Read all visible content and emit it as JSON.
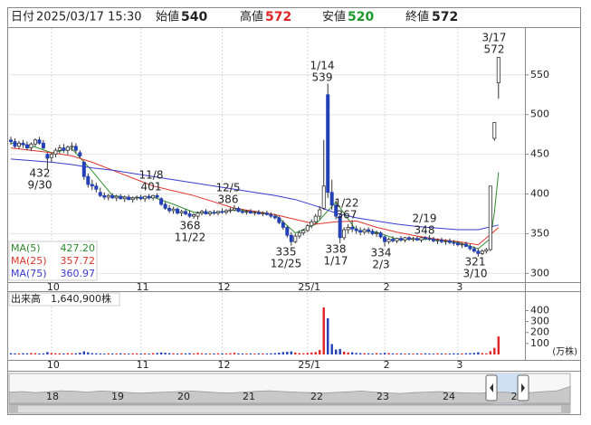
{
  "header": {
    "date_label": "日付",
    "date": "2025/03/17 15:30",
    "open_label": "始値",
    "open": 540,
    "high_label": "高値",
    "high": 572,
    "low_label": "安値",
    "low": 520,
    "close_label": "終値",
    "close": 572
  },
  "chart_data": {
    "type": "candlestick",
    "open": [
      468,
      466,
      460,
      464,
      462,
      458,
      463,
      468,
      464,
      450,
      446,
      450,
      455,
      458,
      455,
      459,
      460,
      452,
      440,
      422,
      412,
      410,
      402,
      398,
      396,
      398,
      395,
      397,
      394,
      396,
      393,
      395,
      396,
      394,
      397,
      395,
      398,
      394,
      387,
      382,
      379,
      381,
      376,
      378,
      375,
      372,
      372,
      376,
      378,
      375,
      377,
      376,
      378,
      377,
      379,
      380,
      382,
      378,
      377,
      378,
      376,
      377,
      375,
      376,
      374,
      372,
      370,
      364,
      358,
      348,
      340,
      347,
      351,
      354,
      360,
      365,
      372,
      382,
      525,
      402,
      386,
      372,
      345,
      355,
      358,
      356,
      354,
      352,
      355,
      353,
      350,
      351,
      346,
      340,
      343,
      341,
      344,
      342,
      345,
      343,
      344,
      342,
      345,
      344,
      343,
      341,
      342,
      340,
      341,
      339,
      338,
      336,
      337,
      334,
      331,
      328,
      325,
      328,
      330,
      470,
      540
    ],
    "high": [
      472,
      470,
      467,
      468,
      466,
      465,
      470,
      472,
      468,
      452,
      452,
      458,
      462,
      463,
      461,
      465,
      464,
      455,
      442,
      426,
      418,
      414,
      408,
      402,
      400,
      401,
      399,
      400,
      398,
      399,
      397,
      398,
      399,
      398,
      400,
      399,
      401,
      396,
      390,
      386,
      384,
      383,
      380,
      381,
      379,
      376,
      378,
      380,
      381,
      379,
      380,
      379,
      382,
      381,
      383,
      386,
      384,
      381,
      380,
      381,
      379,
      380,
      378,
      379,
      377,
      375,
      372,
      367,
      360,
      352,
      350,
      354,
      356,
      362,
      368,
      375,
      385,
      468,
      539,
      418,
      392,
      375,
      358,
      362,
      367,
      360,
      358,
      357,
      358,
      356,
      354,
      353,
      348,
      345,
      347,
      345,
      347,
      346,
      347,
      346,
      347,
      346,
      347,
      348,
      346,
      344,
      345,
      343,
      344,
      342,
      341,
      339,
      340,
      337,
      334,
      331,
      330,
      332,
      410,
      490,
      572
    ],
    "low": [
      462,
      458,
      457,
      458,
      455,
      454,
      460,
      462,
      456,
      432,
      440,
      446,
      451,
      452,
      450,
      454,
      452,
      445,
      418,
      408,
      405,
      402,
      396,
      393,
      392,
      394,
      391,
      393,
      390,
      392,
      389,
      392,
      392,
      390,
      393,
      392,
      394,
      385,
      380,
      376,
      375,
      374,
      372,
      373,
      370,
      369,
      368,
      373,
      374,
      372,
      374,
      373,
      375,
      374,
      376,
      378,
      377,
      375,
      374,
      375,
      373,
      374,
      372,
      373,
      370,
      368,
      362,
      355,
      345,
      335,
      338,
      344,
      348,
      352,
      357,
      362,
      368,
      380,
      395,
      380,
      368,
      338,
      342,
      350,
      352,
      350,
      348,
      349,
      350,
      348,
      346,
      344,
      334,
      337,
      339,
      338,
      340,
      339,
      341,
      340,
      341,
      339,
      342,
      341,
      339,
      337,
      338,
      336,
      337,
      335,
      334,
      332,
      333,
      329,
      326,
      321,
      323,
      325,
      328,
      467,
      520
    ],
    "close": [
      466,
      460,
      464,
      462,
      458,
      463,
      468,
      464,
      458,
      445,
      450,
      455,
      458,
      455,
      459,
      460,
      455,
      448,
      422,
      412,
      410,
      406,
      398,
      396,
      398,
      395,
      397,
      394,
      396,
      393,
      395,
      396,
      394,
      397,
      395,
      398,
      396,
      387,
      382,
      379,
      381,
      376,
      378,
      375,
      372,
      374,
      376,
      378,
      375,
      377,
      376,
      378,
      377,
      379,
      380,
      382,
      378,
      377,
      378,
      376,
      377,
      375,
      376,
      374,
      372,
      370,
      364,
      358,
      348,
      340,
      347,
      351,
      354,
      360,
      365,
      372,
      380,
      410,
      402,
      386,
      372,
      345,
      355,
      358,
      356,
      354,
      352,
      355,
      353,
      350,
      351,
      346,
      340,
      343,
      341,
      344,
      342,
      345,
      343,
      344,
      342,
      345,
      344,
      343,
      341,
      342,
      340,
      341,
      339,
      338,
      336,
      337,
      334,
      331,
      328,
      325,
      328,
      330,
      410,
      490,
      572
    ],
    "up_color": "#ffffff",
    "down_color": "#2340b8",
    "ylim": [
      289,
      609
    ],
    "yticks": [
      300,
      350,
      400,
      450,
      500,
      550
    ],
    "xticks": [
      {
        "value": 10,
        "label": "10"
      },
      {
        "value": 32,
        "label": "11"
      },
      {
        "value": 52,
        "label": "12"
      },
      {
        "value": 73,
        "label": "25/1"
      },
      {
        "value": 92,
        "label": "2"
      },
      {
        "value": 110,
        "label": "3"
      }
    ],
    "grid": true,
    "moving_averages": [
      {
        "name": "MA(5)",
        "legend_value": "427.20",
        "color": "#2e8b2e",
        "x": [
          0,
          5,
          10,
          15,
          20,
          25,
          30,
          35,
          40,
          45,
          50,
          55,
          60,
          65,
          70,
          75,
          80,
          85,
          90,
          95,
          100,
          105,
          110,
          115,
          118,
          119,
          120
        ],
        "values": [
          464,
          461,
          452,
          457,
          429,
          398,
          395,
          396,
          387,
          377,
          376,
          380,
          378,
          374,
          351,
          362,
          390,
          354,
          352,
          343,
          343,
          343,
          339,
          331,
          344,
          377,
          427.2
        ]
      },
      {
        "name": "MA(25)",
        "legend_value": "357.72",
        "color": "#e0342c",
        "x": [
          0,
          5,
          10,
          15,
          20,
          25,
          30,
          35,
          40,
          45,
          50,
          55,
          60,
          65,
          70,
          75,
          80,
          85,
          90,
          95,
          100,
          105,
          110,
          115,
          120
        ],
        "values": [
          458,
          455,
          452,
          448,
          440,
          430,
          420,
          410,
          404,
          398,
          390,
          382,
          378,
          374,
          368,
          362,
          365,
          366,
          358,
          352,
          347,
          343,
          340,
          336,
          357.72
        ]
      },
      {
        "name": "MA(75)",
        "legend_value": "360.97",
        "color": "#3a3ad0",
        "x": [
          0,
          5,
          10,
          15,
          20,
          25,
          30,
          35,
          40,
          45,
          50,
          55,
          60,
          65,
          70,
          75,
          80,
          85,
          90,
          95,
          100,
          105,
          110,
          115,
          120
        ],
        "values": [
          444,
          442,
          440,
          437,
          433,
          430,
          426,
          422,
          418,
          414,
          410,
          406,
          402,
          398,
          393,
          385,
          376,
          370,
          366,
          362,
          359,
          357,
          355,
          355,
          360.97
        ]
      }
    ],
    "annotations": [
      {
        "date": "9/30",
        "value": 432
      },
      {
        "date": "11/8",
        "value": 401
      },
      {
        "date": "11/22",
        "value": 368
      },
      {
        "date": "12/5",
        "value": 386
      },
      {
        "date": "12/25",
        "value": 335
      },
      {
        "date": "1/14",
        "value": 539
      },
      {
        "date": "1/22",
        "value": 367
      },
      {
        "date": "1/17",
        "value": 338
      },
      {
        "date": "2/3",
        "value": 334
      },
      {
        "date": "2/19",
        "value": 348
      },
      {
        "date": "3/10",
        "value": 321
      },
      {
        "date": "3/17",
        "value": 572
      }
    ],
    "volume": {
      "label": "出来高",
      "total": "1,640,900株",
      "unit": "(万株)",
      "up_color": "#e02424",
      "down_color": "#2340b8",
      "ylim": [
        0,
        569
      ],
      "yticks": [
        100,
        200,
        300,
        400
      ],
      "values": [
        12,
        10,
        9,
        11,
        10,
        13,
        12,
        9,
        10,
        22,
        14,
        11,
        10,
        9,
        12,
        10,
        11,
        16,
        28,
        20,
        12,
        10,
        9,
        8,
        10,
        9,
        8,
        11,
        9,
        8,
        10,
        9,
        9,
        10,
        8,
        12,
        14,
        18,
        15,
        12,
        10,
        9,
        11,
        10,
        12,
        9,
        14,
        10,
        9,
        8,
        9,
        10,
        10,
        9,
        11,
        15,
        10,
        9,
        8,
        9,
        8,
        10,
        9,
        8,
        10,
        12,
        16,
        22,
        25,
        28,
        18,
        12,
        10,
        14,
        18,
        22,
        40,
        430,
        330,
        95,
        45,
        50,
        25,
        18,
        20,
        14,
        12,
        11,
        10,
        9,
        12,
        10,
        15,
        12,
        10,
        9,
        10,
        8,
        9,
        8,
        10,
        9,
        11,
        9,
        8,
        10,
        9,
        8,
        9,
        10,
        10,
        9,
        11,
        12,
        14,
        20,
        12,
        10,
        30,
        60,
        164.09
      ]
    },
    "navigator": {
      "labels": [
        "18",
        "19",
        "20",
        "21",
        "22",
        "23",
        "24",
        "2"
      ],
      "ylim": [
        0,
        100
      ],
      "values": [
        40,
        42,
        38,
        41,
        45,
        43,
        40,
        44,
        42,
        39,
        36,
        38,
        40,
        42,
        44,
        41,
        38,
        37,
        40,
        43,
        45,
        42,
        40,
        38,
        36,
        39,
        41,
        44,
        40,
        37,
        35,
        38,
        40,
        42,
        39,
        37,
        36,
        38,
        40,
        35,
        38,
        42,
        45,
        60
      ]
    }
  }
}
